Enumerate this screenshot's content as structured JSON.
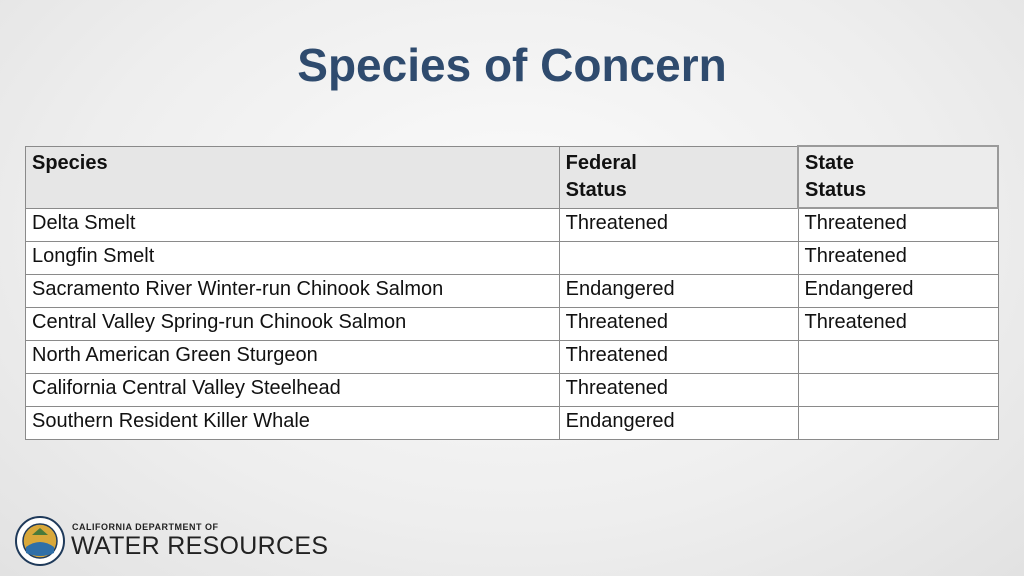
{
  "title": "Species of Concern",
  "table": {
    "header": {
      "species": "Species",
      "federal": "Federal\nStatus",
      "state": "State\nStatus"
    },
    "rows": [
      {
        "species": "Delta Smelt",
        "federal": "Threatened",
        "state": "Threatened"
      },
      {
        "species": "Longfin Smelt",
        "state": "Threatened"
      },
      {
        "species": "Sacramento River Winter-run Chinook Salmon",
        "federal": "Endangered",
        "state": "Endangered"
      },
      {
        "species": "Central Valley Spring-run Chinook Salmon",
        "federal": "Threatened",
        "state": "Threatened"
      },
      {
        "species": "North American Green Sturgeon",
        "federal": "Threatened"
      },
      {
        "species": "California Central Valley Steelhead",
        "federal": "Threatened"
      },
      {
        "species": "Southern Resident Killer Whale",
        "federal": "Endangered"
      }
    ]
  },
  "logo": {
    "line1": "CALIFORNIA DEPARTMENT OF",
    "line2": "WATER RESOURCES"
  }
}
